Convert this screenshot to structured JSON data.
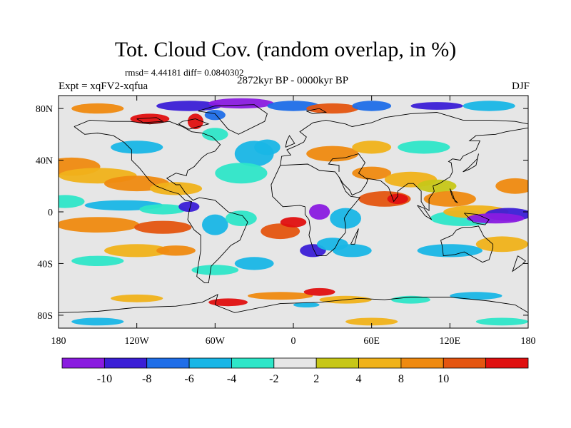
{
  "title": "Tot. Cloud Cov. (random overlap, in %)",
  "stats": "rmsd= 4.44181 diff= 0.0840302",
  "period": "2872kyr BP - 0000kyr BP",
  "experiment": "Expt = xqFV2-xqfua",
  "season": "DJF",
  "map": {
    "projection": "cylindrical-equidistant",
    "lon_range": [
      -180,
      180
    ],
    "lat_range": [
      -90,
      90
    ],
    "lon_ticks": [
      {
        "value": -180,
        "label": "180"
      },
      {
        "value": -120,
        "label": "120W"
      },
      {
        "value": -60,
        "label": "60W"
      },
      {
        "value": 0,
        "label": "0"
      },
      {
        "value": 60,
        "label": "60E"
      },
      {
        "value": 120,
        "label": "120E"
      },
      {
        "value": 180,
        "label": "180"
      }
    ],
    "lat_ticks": [
      {
        "value": 80,
        "label": "80N"
      },
      {
        "value": 40,
        "label": "40N"
      },
      {
        "value": 0,
        "label": "0"
      },
      {
        "value": -40,
        "label": "40S"
      },
      {
        "value": -80,
        "label": "80S"
      }
    ],
    "background_color": "#e6e6e6",
    "coastline_color": "#000000"
  },
  "colorbar": {
    "labels": [
      "-10",
      "-8",
      "-6",
      "-4",
      "-2",
      "2",
      "4",
      "8",
      "10"
    ],
    "colors": [
      "#8a1be0",
      "#3b1fd6",
      "#1f6ee8",
      "#19b6e6",
      "#2ee6c8",
      "#e6e6e6",
      "#c7c718",
      "#f0b21a",
      "#ef8a10",
      "#e45510",
      "#e01010"
    ]
  }
}
